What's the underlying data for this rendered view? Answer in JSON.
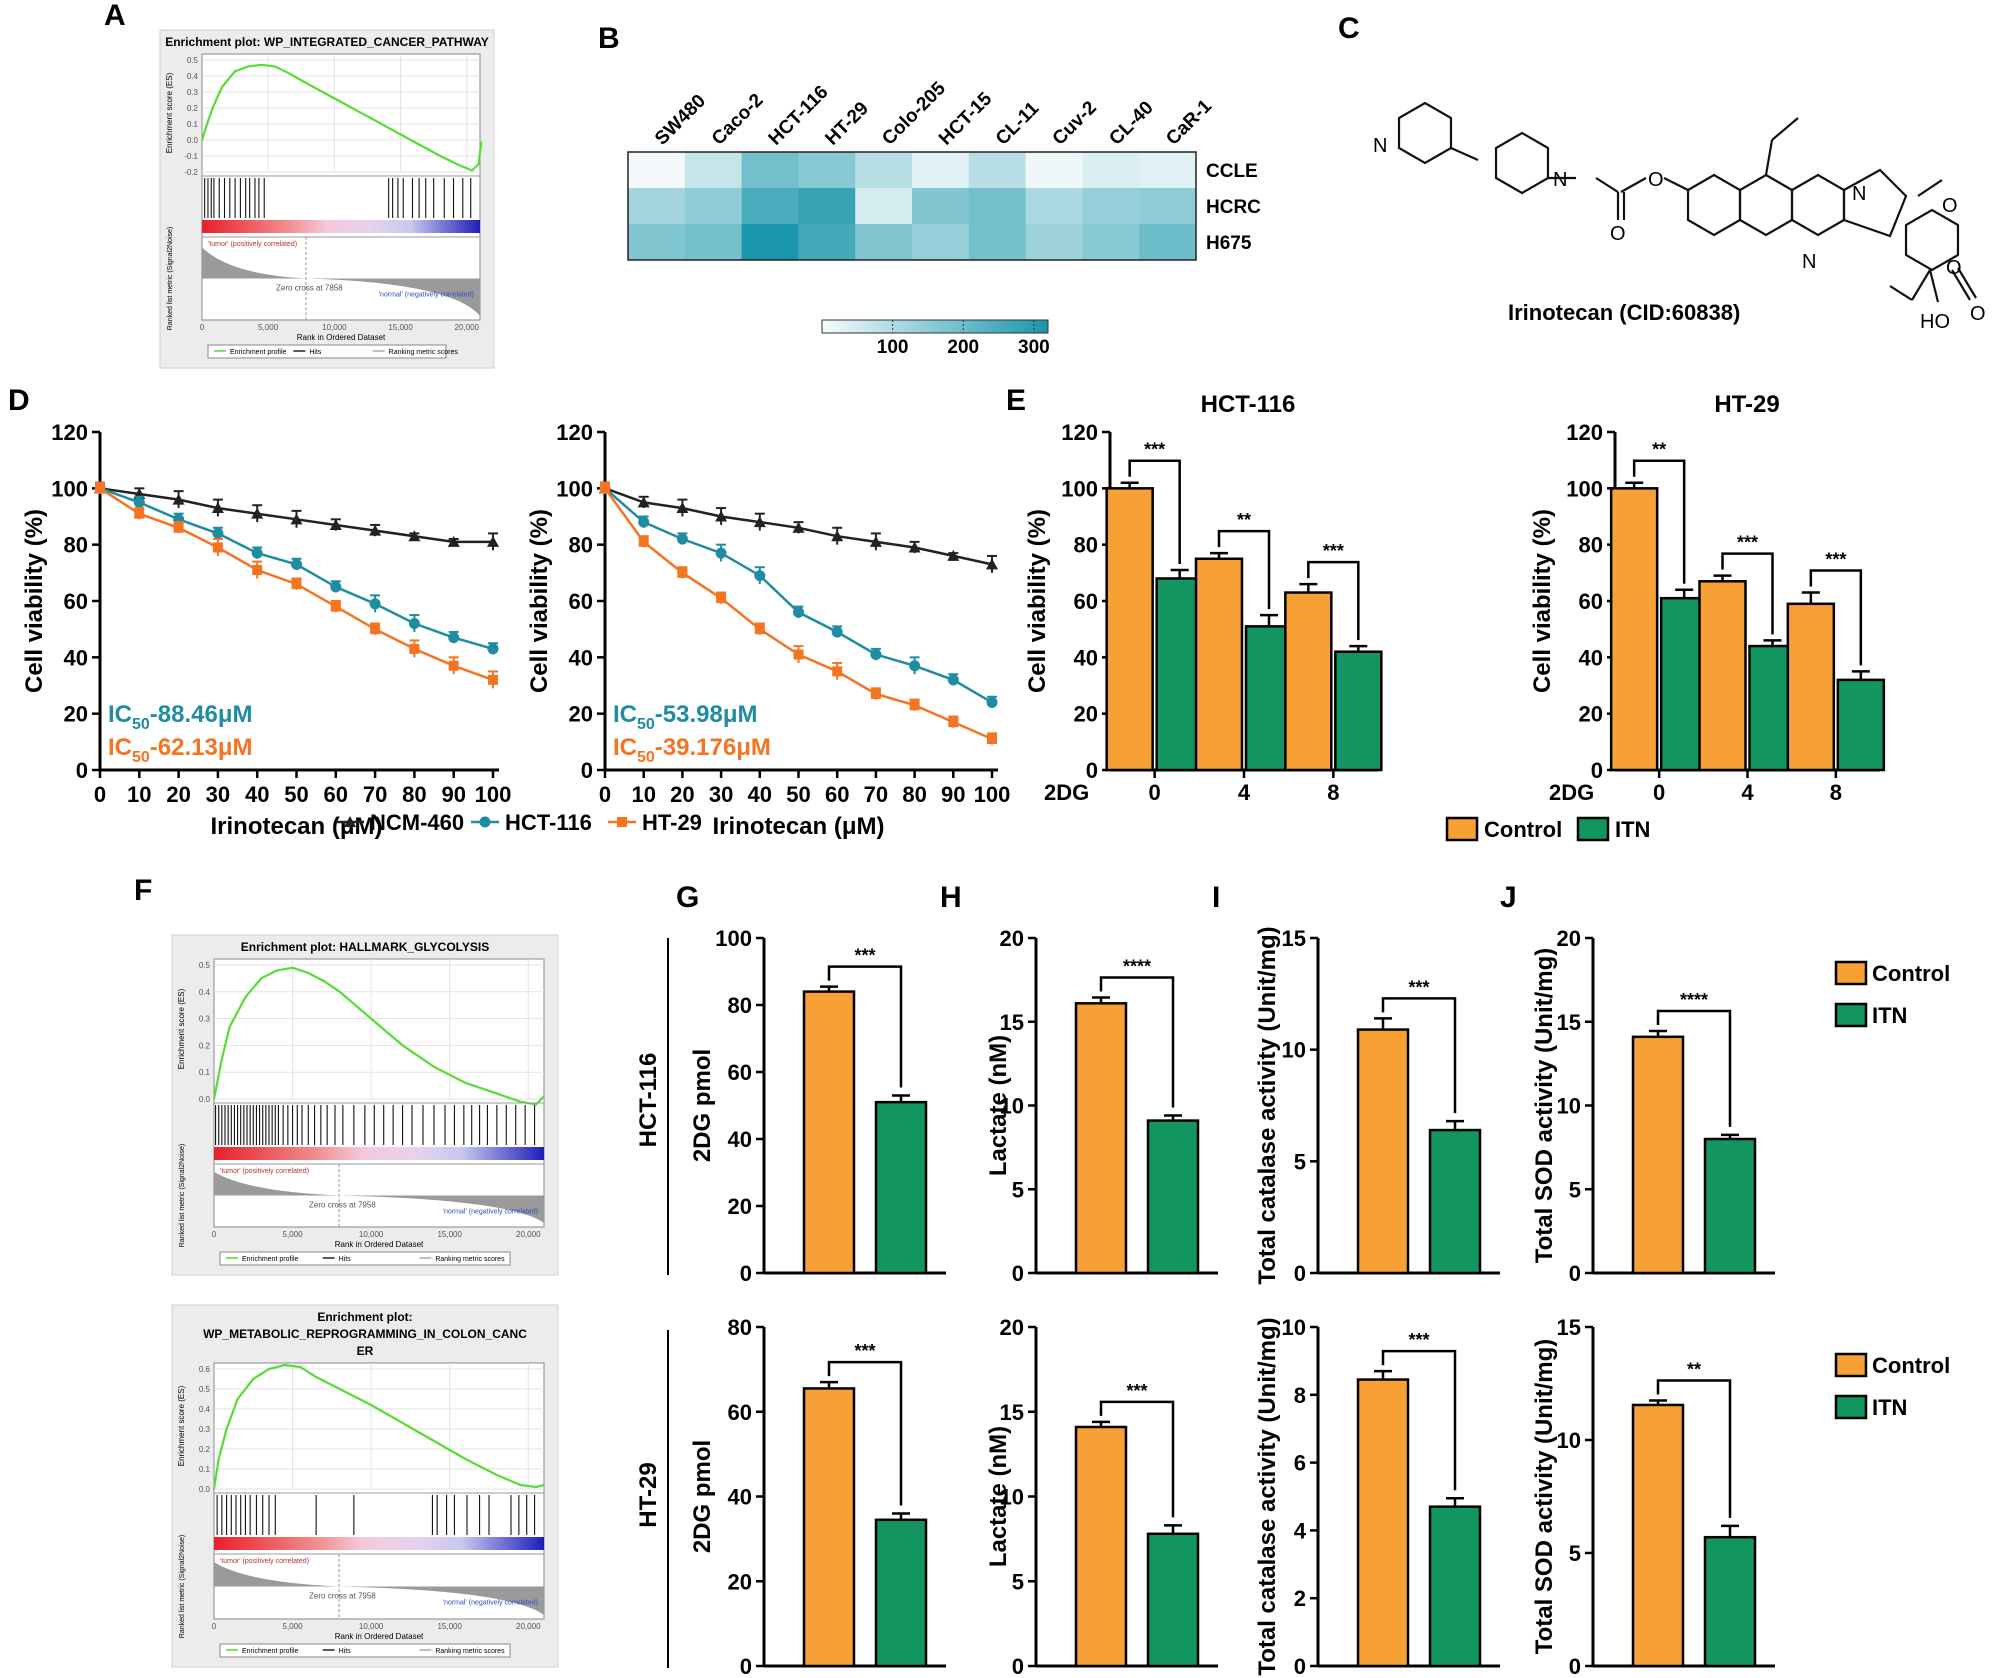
{
  "colors": {
    "control": "#f7a035",
    "itn": "#13955f",
    "ncm": "#222222",
    "hct": "#1f8ca1",
    "ht": "#f47421",
    "gsea_line": "#55dd33",
    "heat_low": "#f6fbfc",
    "heat_high": "#1a96ab"
  },
  "panel_letters": [
    "A",
    "B",
    "C",
    "D",
    "E",
    "F",
    "G",
    "H",
    "I",
    "J"
  ],
  "chart_data": [
    {
      "id": "A",
      "type": "line",
      "title": "Enrichment plot: WP_INTEGRATED_CANCER_PATHWAY",
      "ylabel": "Enrichment score (ES)",
      "ylabel2": "Ranked list metric (Signal2Noise)",
      "xlabel": "Rank in Ordered Dataset",
      "yticks": [
        "0.5",
        "0.4",
        "0.3",
        "0.2",
        "0.1",
        "0.0",
        "-0.1",
        "-0.2"
      ],
      "xticks": [
        "0",
        "5,000",
        "10,000",
        "15,000",
        "20,000"
      ],
      "pos_label": "'tumor' (positively correlated)",
      "neg_label": "'normal' (negatively correlated)",
      "zero_cross": "Zero cross at 7858",
      "legend": [
        "Enrichment profile",
        "Hits",
        "Ranking metric scores"
      ],
      "x": [
        0,
        300,
        800,
        1500,
        2500,
        3500,
        4500,
        5500,
        6500,
        8000,
        10000,
        12000,
        14000,
        16000,
        18000,
        19500,
        20400,
        20900,
        21100
      ],
      "es": [
        0.0,
        0.08,
        0.2,
        0.33,
        0.43,
        0.46,
        0.47,
        0.46,
        0.42,
        0.35,
        0.26,
        0.17,
        0.08,
        -0.01,
        -0.1,
        -0.16,
        -0.19,
        -0.15,
        -0.01
      ],
      "hits": [
        200,
        450,
        700,
        900,
        1300,
        1700,
        2100,
        2500,
        2900,
        3300,
        3600,
        4000,
        4300,
        4700,
        14100,
        14400,
        14800,
        15200,
        15900,
        16400,
        16900,
        17500,
        18300,
        19000,
        19700,
        20300
      ]
    },
    {
      "id": "B",
      "type": "heatmap",
      "columns": [
        "SW480",
        "Caco-2",
        "HCT-116",
        "HT-29",
        "Colo-205",
        "HCT-15",
        "CL-11",
        "Cuv-2",
        "CL-40",
        "CaR-1"
      ],
      "rows": [
        "CCLE",
        "HCRC",
        "H675"
      ],
      "values": [
        [
          5,
          70,
          190,
          160,
          90,
          30,
          90,
          10,
          40,
          30
        ],
        [
          120,
          150,
          250,
          280,
          50,
          170,
          190,
          110,
          140,
          150
        ],
        [
          170,
          190,
          320,
          260,
          170,
          140,
          190,
          130,
          160,
          200
        ]
      ],
      "colorbar": {
        "min": 0,
        "max": 320,
        "ticks": [
          "100",
          "200",
          "300"
        ]
      }
    },
    {
      "id": "D1",
      "type": "line",
      "xlabel": "Irinotecan (μM)",
      "ylabel": "Cell viability (%)",
      "ylim": [
        0,
        120
      ],
      "yticks": [
        "0",
        "20",
        "40",
        "60",
        "80",
        "100",
        "120"
      ],
      "x": [
        0,
        10,
        20,
        30,
        40,
        50,
        60,
        70,
        80,
        90,
        100
      ],
      "series": [
        {
          "name": "NCM-460",
          "values": [
            100,
            98,
            96,
            93,
            91,
            89,
            87,
            85,
            83,
            81,
            81
          ],
          "err": [
            2,
            2,
            3,
            3,
            3,
            3,
            2,
            2,
            1,
            1,
            3
          ]
        },
        {
          "name": "HCT-116",
          "values": [
            100,
            95,
            89,
            84,
            77,
            73,
            65,
            59,
            52,
            47,
            43
          ],
          "err": [
            2,
            2,
            2,
            2,
            2,
            2,
            2,
            3,
            3,
            2,
            2
          ]
        },
        {
          "name": "HT-29",
          "values": [
            100,
            91,
            86,
            79,
            71,
            66,
            58,
            50,
            43,
            37,
            32
          ],
          "err": [
            2,
            2,
            2,
            3,
            3,
            2,
            2,
            2,
            3,
            3,
            3
          ]
        }
      ],
      "ic50_a_prefix": "IC",
      "ic50_a_sub": "50",
      "ic50_a_value": "-88.46μM",
      "ic50_b_prefix": "IC",
      "ic50_b_sub": "50",
      "ic50_b_value": "-62.13μM"
    },
    {
      "id": "D2",
      "type": "line",
      "xlabel": "Irinotecan (μM)",
      "ylabel": "Cell viability (%)",
      "ylim": [
        0,
        120
      ],
      "yticks": [
        "0",
        "20",
        "40",
        "60",
        "80",
        "100",
        "120"
      ],
      "x": [
        0,
        10,
        20,
        30,
        40,
        50,
        60,
        70,
        80,
        90,
        100
      ],
      "series": [
        {
          "name": "NCM-460",
          "values": [
            100,
            95,
            93,
            90,
            88,
            86,
            83,
            81,
            79,
            76,
            73
          ],
          "err": [
            2,
            2,
            3,
            3,
            3,
            2,
            3,
            3,
            2,
            1,
            3
          ]
        },
        {
          "name": "HCT-116",
          "values": [
            100,
            88,
            82,
            77,
            69,
            56,
            49,
            41,
            37,
            32,
            24
          ],
          "err": [
            2,
            2,
            2,
            3,
            3,
            2,
            2,
            2,
            3,
            2,
            2
          ]
        },
        {
          "name": "HT-29",
          "values": [
            100,
            81,
            70,
            61,
            50,
            41,
            35,
            27,
            23,
            17,
            11
          ],
          "err": [
            2,
            2,
            2,
            2,
            2,
            3,
            3,
            2,
            2,
            2,
            2
          ]
        }
      ],
      "ic50_a_prefix": "IC",
      "ic50_a_sub": "50",
      "ic50_a_value": "-53.98μM",
      "ic50_b_prefix": "IC",
      "ic50_b_sub": "50",
      "ic50_b_value": "-39.176μM"
    },
    {
      "id": "E1",
      "type": "bar",
      "title": "HCT-116",
      "ylabel": "Cell viability (%)",
      "xlabel": "2DG",
      "categories": [
        "0",
        "4",
        "8"
      ],
      "ylim": [
        0,
        120
      ],
      "yticks": [
        "0",
        "20",
        "40",
        "60",
        "80",
        "100",
        "120"
      ],
      "series": [
        {
          "name": "Control",
          "values": [
            100,
            75,
            63
          ],
          "err": [
            2,
            2,
            3
          ]
        },
        {
          "name": "ITN",
          "values": [
            68,
            51,
            42
          ],
          "err": [
            3,
            4,
            2
          ]
        }
      ],
      "sig": [
        "***",
        "**",
        "***"
      ]
    },
    {
      "id": "E2",
      "type": "bar",
      "title": "HT-29",
      "ylabel": "Cell viability (%)",
      "xlabel": "2DG",
      "categories": [
        "0",
        "4",
        "8"
      ],
      "ylim": [
        0,
        120
      ],
      "yticks": [
        "0",
        "20",
        "40",
        "60",
        "80",
        "100",
        "120"
      ],
      "series": [
        {
          "name": "Control",
          "values": [
            100,
            67,
            59
          ],
          "err": [
            2,
            2,
            4
          ]
        },
        {
          "name": "ITN",
          "values": [
            61,
            44,
            32
          ],
          "err": [
            3,
            2,
            3
          ]
        }
      ],
      "sig": [
        "**",
        "***",
        "***"
      ]
    },
    {
      "id": "F1",
      "type": "line",
      "title": "Enrichment plot: HALLMARK_GLYCOLYSIS",
      "ylabel": "Enrichment score (ES)",
      "ylabel2": "Ranked list metric (Signal2Noise)",
      "xlabel": "Rank in Ordered Dataset",
      "yticks": [
        "0.5",
        "0.4",
        "0.3",
        "0.2",
        "0.1",
        "0.0"
      ],
      "xticks": [
        "0",
        "5,000",
        "10,000",
        "15,000",
        "20,000"
      ],
      "pos_label": "'tumor' (positively correlated)",
      "neg_label": "'normal' (negatively correlated)",
      "zero_cross": "Zero cross at 7958",
      "legend": [
        "Enrichment profile",
        "Hits",
        "Ranking metric scores"
      ],
      "x": [
        0,
        500,
        1000,
        2000,
        3000,
        4000,
        5000,
        6000,
        7000,
        8000,
        10000,
        12000,
        14000,
        16000,
        18000,
        19500,
        20500,
        21000
      ],
      "es": [
        0.0,
        0.15,
        0.27,
        0.38,
        0.45,
        0.48,
        0.49,
        0.47,
        0.44,
        0.4,
        0.3,
        0.2,
        0.12,
        0.06,
        0.02,
        -0.01,
        -0.02,
        0.01
      ],
      "hits": [
        100,
        300,
        500,
        700,
        900,
        1100,
        1300,
        1500,
        1700,
        1900,
        2100,
        2300,
        2500,
        2700,
        2900,
        3100,
        3300,
        3500,
        3700,
        3900,
        4100,
        4400,
        4700,
        5000,
        5300,
        5600,
        6000,
        6400,
        6800,
        7200,
        7700,
        8200,
        8900,
        9600,
        10200,
        10800,
        11400,
        12000,
        12600,
        13300,
        14000,
        14700,
        15300,
        15900,
        16400,
        16900,
        17400,
        18000,
        18600,
        19200,
        19800,
        20400
      ]
    },
    {
      "id": "F2",
      "type": "line",
      "title": "Enrichment plot:",
      "title2": "WP_METABOLIC_REPROGRAMMING_IN_COLON_CANC",
      "title3": "ER",
      "ylabel": "Enrichment score (ES)",
      "ylabel2": "Ranked list metric (Signal2Noise)",
      "xlabel": "Rank in Ordered Dataset",
      "yticks": [
        "0.6",
        "0.5",
        "0.4",
        "0.3",
        "0.2",
        "0.1",
        "0.0"
      ],
      "xticks": [
        "0",
        "5,000",
        "10,000",
        "15,000",
        "20,000"
      ],
      "pos_label": "'tumor' (positively correlated)",
      "neg_label": "'normal' (negatively correlated)",
      "zero_cross": "Zero cross at 7958",
      "legend": [
        "Enrichment profile",
        "Hits",
        "Ranking metric scores"
      ],
      "x": [
        0,
        300,
        800,
        1500,
        2500,
        3500,
        4500,
        5500,
        6500,
        8000,
        10000,
        12000,
        14000,
        16000,
        18000,
        19500,
        20500,
        21000
      ],
      "es": [
        0.0,
        0.15,
        0.3,
        0.45,
        0.55,
        0.6,
        0.62,
        0.61,
        0.56,
        0.5,
        0.42,
        0.33,
        0.24,
        0.15,
        0.07,
        0.02,
        0.01,
        0.02
      ],
      "hits": [
        200,
        500,
        800,
        1100,
        1400,
        1700,
        2000,
        2300,
        2700,
        3100,
        3500,
        3900,
        6500,
        8900,
        13900,
        14200,
        14800,
        15300,
        16100,
        16900,
        17500,
        18900,
        19400,
        19900,
        20400
      ]
    },
    {
      "id": "G1",
      "type": "bar",
      "ylabel": "2DG pmol",
      "row_label": "HCT-116",
      "categories": [
        "Control",
        "ITN"
      ],
      "ylim": [
        0,
        100
      ],
      "yticks": [
        "0",
        "20",
        "40",
        "60",
        "80",
        "100"
      ],
      "values": [
        84,
        51
      ],
      "err": [
        1.5,
        2
      ],
      "sig": "***"
    },
    {
      "id": "H1",
      "type": "bar",
      "ylabel": "Lactate (nM)",
      "categories": [
        "Control",
        "ITN"
      ],
      "ylim": [
        0,
        20
      ],
      "yticks": [
        "0",
        "5",
        "10",
        "15",
        "20"
      ],
      "values": [
        16.1,
        9.1
      ],
      "err": [
        0.35,
        0.3
      ],
      "sig": "****"
    },
    {
      "id": "I1",
      "type": "bar",
      "ylabel": "Total catalase activity (Unit/mg)",
      "categories": [
        "Control",
        "ITN"
      ],
      "ylim": [
        0,
        15
      ],
      "yticks": [
        "0",
        "5",
        "10",
        "15"
      ],
      "values": [
        10.9,
        6.4
      ],
      "err": [
        0.5,
        0.4
      ],
      "sig": "***"
    },
    {
      "id": "J1",
      "type": "bar",
      "ylabel": "Total SOD activity (Unit/mg)",
      "categories": [
        "Control",
        "ITN"
      ],
      "ylim": [
        0,
        20
      ],
      "yticks": [
        "0",
        "5",
        "10",
        "15",
        "20"
      ],
      "values": [
        14.1,
        8.0
      ],
      "err": [
        0.35,
        0.25
      ],
      "sig": "****"
    },
    {
      "id": "G2",
      "type": "bar",
      "ylabel": "2DG pmol",
      "row_label": "HT-29",
      "categories": [
        "Control",
        "ITN"
      ],
      "ylim": [
        0,
        80
      ],
      "yticks": [
        "0",
        "20",
        "40",
        "60",
        "80"
      ],
      "values": [
        65.5,
        34.5
      ],
      "err": [
        1.5,
        1.5
      ],
      "sig": "***"
    },
    {
      "id": "H2",
      "type": "bar",
      "ylabel": "Lactate (nM)",
      "categories": [
        "Control",
        "ITN"
      ],
      "ylim": [
        0,
        20
      ],
      "yticks": [
        "0",
        "5",
        "10",
        "15",
        "20"
      ],
      "values": [
        14.1,
        7.8
      ],
      "err": [
        0.3,
        0.5
      ],
      "sig": "***"
    },
    {
      "id": "I2",
      "type": "bar",
      "ylabel": "Total catalase activity (Unit/mg)",
      "categories": [
        "Control",
        "ITN"
      ],
      "ylim": [
        0,
        10
      ],
      "yticks": [
        "0",
        "2",
        "4",
        "6",
        "8",
        "10"
      ],
      "values": [
        8.45,
        4.7
      ],
      "err": [
        0.25,
        0.25
      ],
      "sig": "***"
    },
    {
      "id": "J2",
      "type": "bar",
      "ylabel": "Total SOD activity (Unit/mg)",
      "categories": [
        "Control",
        "ITN"
      ],
      "ylim": [
        0,
        15
      ],
      "yticks": [
        "0",
        "5",
        "10",
        "15"
      ],
      "values": [
        11.55,
        5.7
      ],
      "err": [
        0.2,
        0.5
      ],
      "sig": "**"
    }
  ],
  "molecule": {
    "name": "Irinotecan (CID:60838)",
    "atom_o": "O",
    "atom_n": "N",
    "atom_ho": "HO"
  },
  "legends": {
    "d": [
      "NCM-460",
      "HCT-116",
      "HT-29"
    ],
    "e": [
      "Control",
      "ITN"
    ],
    "gj_top": [
      "Control",
      "ITN"
    ],
    "gj_bottom": [
      "Control",
      "ITN"
    ]
  }
}
